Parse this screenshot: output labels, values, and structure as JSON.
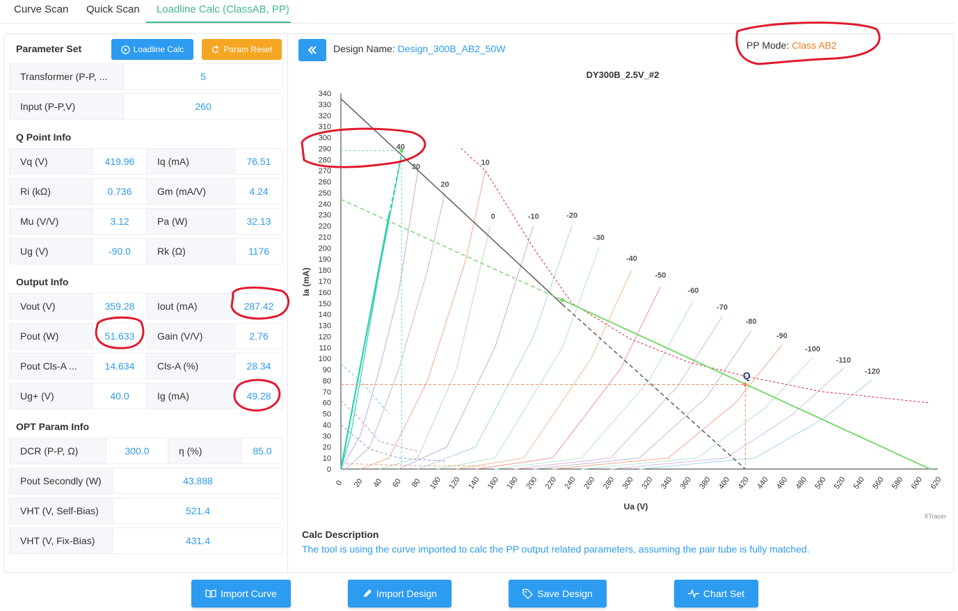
{
  "tabs": [
    {
      "label": "Curve Scan"
    },
    {
      "label": "Quick Scan"
    },
    {
      "label": "Loadline Calc (ClassAB, PP)"
    }
  ],
  "param_set": {
    "title": "Parameter Set",
    "loadline_btn": "Loadline Calc",
    "reset_btn": "Param Reset",
    "rows": [
      {
        "label": "Transformer (P-P, ...",
        "value": "5"
      },
      {
        "label": "Input (P-P,V)",
        "value": "260"
      }
    ]
  },
  "q_point": {
    "title": "Q Point Info",
    "rows": [
      {
        "l1": "Vq (V)",
        "v1": "419.96",
        "l2": "Iq (mA)",
        "v2": "76.51"
      },
      {
        "l1": "Ri (kΩ)",
        "v1": "0.736",
        "l2": "Gm (mA/V)",
        "v2": "4.24"
      },
      {
        "l1": "Mu (V/V)",
        "v1": "3.12",
        "l2": "Pa (W)",
        "v2": "32.13"
      },
      {
        "l1": "Ug (V)",
        "v1": "-90.0",
        "l2": "Rk (Ω)",
        "v2": "1176"
      }
    ]
  },
  "output": {
    "title": "Output Info",
    "rows": [
      {
        "l1": "Vout (V)",
        "v1": "359.28",
        "l2": "Iout (mA)",
        "v2": "287.42"
      },
      {
        "l1": "Pout (W)",
        "v1": "51.633",
        "l2": "Gain (V/V)",
        "v2": "2.76"
      },
      {
        "l1": "Pout Cls-A ...",
        "v1": "14.634",
        "l2": "Cls-A (%)",
        "v2": "28.34"
      },
      {
        "l1": "Ug+ (V)",
        "v1": "40.0",
        "l2": "Ig (mA)",
        "v2": "49.28"
      }
    ]
  },
  "opt": {
    "title": "OPT Param Info",
    "dcr": {
      "l1": "DCR (P-P, Ω)",
      "v1": "300.0",
      "l2": "η (%)",
      "v2": "85.0"
    },
    "rows": [
      {
        "label": "Pout Secondly (W)",
        "value": "43.888"
      },
      {
        "label": "VHT (V, Self-Bias)",
        "value": "521.4"
      },
      {
        "label": "VHT (V, Fix-Bias)",
        "value": "431.4"
      }
    ]
  },
  "header": {
    "design_label": "Design Name: ",
    "design_value": "Design_300B_AB2_50W",
    "mode_label": "PP Mode: ",
    "mode_value": "Class AB2"
  },
  "chart_data": {
    "type": "line",
    "title": "DY300B_2.5V_#2",
    "xlabel": "Ua (V)",
    "ylabel": "Ia (mA)",
    "xlim": [
      0,
      620
    ],
    "ylim": [
      0,
      340
    ],
    "x_ticks": [
      0,
      20,
      40,
      60,
      80,
      100,
      120,
      140,
      160,
      180,
      200,
      220,
      240,
      260,
      280,
      300,
      320,
      340,
      360,
      380,
      400,
      420,
      440,
      460,
      480,
      500,
      520,
      540,
      560,
      580,
      600,
      620
    ],
    "y_ticks": [
      0,
      10,
      20,
      30,
      40,
      50,
      60,
      70,
      80,
      90,
      100,
      110,
      120,
      130,
      140,
      150,
      160,
      170,
      180,
      190,
      200,
      210,
      220,
      230,
      240,
      250,
      260,
      270,
      280,
      290,
      300,
      310,
      320,
      330,
      340
    ],
    "watermark": "XTracer",
    "grid_curves": [
      {
        "name": "40",
        "label_at": [
          62,
          288
        ],
        "color": "#2ecfb0",
        "points": [
          [
            0,
            0
          ],
          [
            10,
            30
          ],
          [
            20,
            80
          ],
          [
            30,
            130
          ],
          [
            40,
            180
          ],
          [
            50,
            225
          ],
          [
            60,
            270
          ],
          [
            63,
            285
          ]
        ]
      },
      {
        "name": "30",
        "label_at": [
          78,
          270
        ],
        "color": "#c9b5e8",
        "points": [
          [
            0,
            0
          ],
          [
            20,
            30
          ],
          [
            40,
            90
          ],
          [
            60,
            160
          ],
          [
            80,
            270
          ]
        ]
      },
      {
        "name": "20",
        "label_at": [
          108,
          254
        ],
        "color": "#c6c6d8",
        "points": [
          [
            5,
            0
          ],
          [
            30,
            20
          ],
          [
            60,
            90
          ],
          [
            90,
            180
          ],
          [
            108,
            250
          ]
        ]
      },
      {
        "name": "10",
        "label_at": [
          150,
          274
        ],
        "color": "#f5b49a",
        "points": [
          [
            20,
            0
          ],
          [
            50,
            10
          ],
          [
            90,
            80
          ],
          [
            130,
            190
          ],
          [
            150,
            270
          ]
        ]
      },
      {
        "name": "0",
        "label_at": [
          158,
          225
        ],
        "color": "#bfe3c6",
        "points": [
          [
            40,
            0
          ],
          [
            80,
            10
          ],
          [
            120,
            90
          ],
          [
            155,
            220
          ]
        ]
      },
      {
        "name": "-10",
        "label_at": [
          200,
          225
        ],
        "color": "#c9b5e8",
        "points": [
          [
            60,
            0
          ],
          [
            110,
            20
          ],
          [
            160,
            110
          ],
          [
            200,
            220
          ]
        ]
      },
      {
        "name": "-20",
        "label_at": [
          240,
          226
        ],
        "color": "#b3d9f0",
        "points": [
          [
            80,
            0
          ],
          [
            140,
            20
          ],
          [
            200,
            120
          ],
          [
            240,
            220
          ]
        ]
      },
      {
        "name": "-30",
        "label_at": [
          268,
          206
        ],
        "color": "#bfe8d4",
        "points": [
          [
            100,
            0
          ],
          [
            160,
            10
          ],
          [
            230,
            110
          ],
          [
            268,
            200
          ]
        ]
      },
      {
        "name": "-40",
        "label_at": [
          302,
          187
        ],
        "color": "#f5c6a0",
        "points": [
          [
            120,
            0
          ],
          [
            190,
            10
          ],
          [
            260,
            100
          ],
          [
            302,
            180
          ]
        ]
      },
      {
        "name": "-50",
        "label_at": [
          332,
          172
        ],
        "color": "#f5a3a3",
        "points": [
          [
            140,
            0
          ],
          [
            220,
            10
          ],
          [
            290,
            90
          ],
          [
            332,
            165
          ]
        ]
      },
      {
        "name": "-60",
        "label_at": [
          366,
          158
        ],
        "color": "#bfe8d4",
        "points": [
          [
            160,
            0
          ],
          [
            250,
            10
          ],
          [
            320,
            80
          ],
          [
            366,
            152
          ]
        ]
      },
      {
        "name": "-70",
        "label_at": [
          396,
          143
        ],
        "color": "#e0bde8",
        "points": [
          [
            180,
            0
          ],
          [
            280,
            10
          ],
          [
            350,
            75
          ],
          [
            396,
            138
          ]
        ]
      },
      {
        "name": "-80",
        "label_at": [
          426,
          130
        ],
        "color": "#c6c6d8",
        "points": [
          [
            200,
            0
          ],
          [
            310,
            10
          ],
          [
            380,
            65
          ],
          [
            426,
            125
          ]
        ]
      },
      {
        "name": "-90",
        "label_at": [
          458,
          117
        ],
        "color": "#f5b49a",
        "points": [
          [
            220,
            0
          ],
          [
            340,
            10
          ],
          [
            410,
            60
          ],
          [
            458,
            112
          ]
        ]
      },
      {
        "name": "-100",
        "label_at": [
          490,
          105
        ],
        "color": "#bfe8d4",
        "points": [
          [
            250,
            0
          ],
          [
            370,
            10
          ],
          [
            440,
            55
          ],
          [
            490,
            101
          ]
        ]
      },
      {
        "name": "-110",
        "label_at": [
          522,
          95
        ],
        "color": "#d6c6ee",
        "points": [
          [
            280,
            0
          ],
          [
            400,
            10
          ],
          [
            470,
            50
          ],
          [
            522,
            91
          ]
        ]
      },
      {
        "name": "-120",
        "label_at": [
          552,
          85
        ],
        "color": "#b3d9f0",
        "points": [
          [
            310,
            0
          ],
          [
            430,
            10
          ],
          [
            500,
            45
          ],
          [
            552,
            81
          ]
        ]
      }
    ],
    "loadline_gray": [
      [
        0,
        335
      ],
      [
        420,
        0
      ]
    ],
    "loadline_green": [
      [
        0,
        244
      ],
      [
        230,
        153
      ],
      [
        612,
        0
      ]
    ],
    "green_steep": [
      [
        0,
        0
      ],
      [
        63,
        285
      ]
    ],
    "pdiss_curve": [
      [
        125,
        290
      ],
      [
        150,
        270
      ],
      [
        200,
        200
      ],
      [
        240,
        150
      ],
      [
        300,
        118
      ],
      [
        360,
        97
      ],
      [
        420,
        84
      ],
      [
        500,
        70
      ],
      [
        610,
        60
      ]
    ],
    "q_point": {
      "label": "Q",
      "x": 420,
      "y": 76.5
    },
    "swing_point": {
      "label": "40",
      "x": 63,
      "y": 288
    },
    "mid_point": {
      "x": 230,
      "y": 153
    }
  },
  "calc": {
    "title": "Calc Description",
    "text": "The tool is using the curve imported to calc the PP output related parameters, assuming the pair tube is fully matched."
  },
  "bottom": {
    "import_curve": "Import Curve",
    "import_design": "Import Design",
    "save_design": "Save Design",
    "chart_set": "Chart Set"
  },
  "colors": {
    "accent": "#2d9bf0",
    "tab_active": "#42b983",
    "orange": "#f5a623",
    "annotation": "#e0192d"
  }
}
